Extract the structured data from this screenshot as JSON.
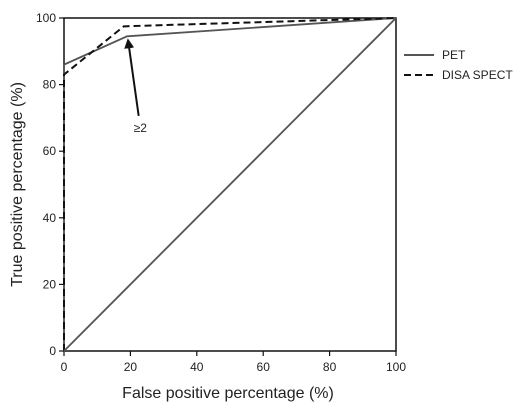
{
  "chart_data": {
    "type": "line",
    "title": "",
    "xlabel": "False positive percentage (%)",
    "ylabel": "True positive percentage (%)",
    "xlim": [
      0,
      100
    ],
    "ylim": [
      0,
      100
    ],
    "xticks": [
      0,
      20,
      40,
      60,
      80,
      100
    ],
    "yticks": [
      0,
      20,
      40,
      60,
      80,
      100
    ],
    "grid": false,
    "legend_position": "right",
    "series": [
      {
        "name": "PET",
        "style": "solid",
        "color": "#555555",
        "x": [
          0,
          0,
          19,
          100
        ],
        "y": [
          0,
          86,
          94.5,
          100
        ]
      },
      {
        "name": "DISA SPECT",
        "style": "dashed",
        "color": "#111111",
        "x": [
          0,
          0,
          18,
          100
        ],
        "y": [
          0,
          83,
          97.5,
          100
        ]
      },
      {
        "name": "",
        "style": "solid",
        "color": "#555555",
        "x": [
          0,
          100
        ],
        "y": [
          0,
          100
        ]
      }
    ],
    "annotations": [
      {
        "text": "≥2",
        "x": 24,
        "y": 67,
        "arrow_to": [
          19,
          94.5
        ]
      }
    ]
  }
}
